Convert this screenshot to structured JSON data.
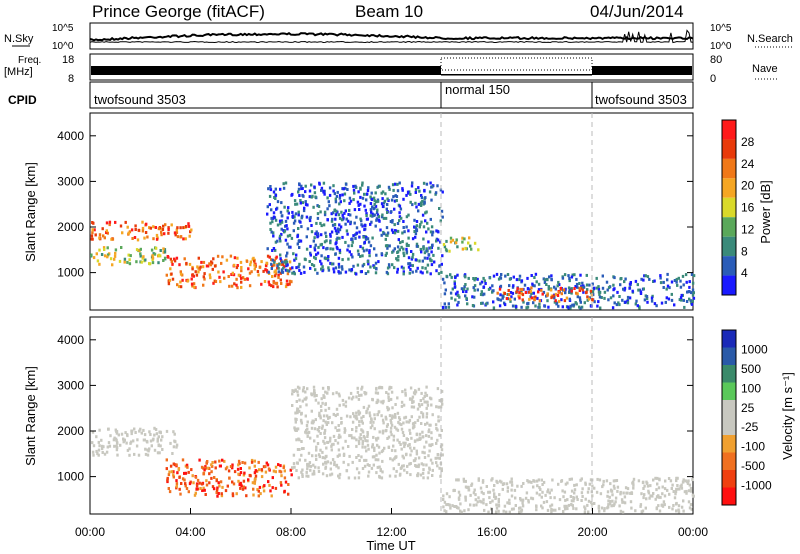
{
  "header": {
    "station": "Prince George (fitACF)",
    "beam": "Beam 10",
    "date": "04/Jun/2014"
  },
  "noise_panel": {
    "left_label": "N.Sky",
    "left_ticks": [
      "10^5",
      "10^0"
    ],
    "right_label": "N.Search",
    "right_ticks": [
      "10^5",
      "10^0"
    ]
  },
  "freq_panel": {
    "left_label_1": "Freq.",
    "left_label_2": "[MHz]",
    "left_ticks": [
      "18",
      "8"
    ],
    "right_label": "Nave",
    "right_ticks": [
      "80",
      "0"
    ]
  },
  "cpid_panel": {
    "label": "CPID",
    "segments": [
      {
        "name": "twofsound 3503",
        "start_h": 0,
        "end_h": 14
      },
      {
        "name": "normal 150",
        "start_h": 14,
        "end_h": 20
      },
      {
        "name": "twofsound 3503",
        "start_h": 20,
        "end_h": 24
      }
    ]
  },
  "colors": {
    "power_scale": [
      "#1a1aff",
      "#2a5cb8",
      "#3a8a7a",
      "#5aa85a",
      "#d9d92a",
      "#f5a623",
      "#f07818",
      "#e83a0a",
      "#ff1a1a"
    ],
    "velocity_scale": [
      "#ff1010",
      "#f04010",
      "#f07020",
      "#f0a030",
      "#c8c8c0",
      "#c8c8c0",
      "#5ac85a",
      "#3a8a6a",
      "#2a5aa8",
      "#1a2ab8"
    ]
  },
  "chart_data": [
    {
      "type": "heatmap",
      "name": "power",
      "xlabel": "",
      "ylabel": "Slant Range [km]",
      "xlim_hours": [
        0,
        24
      ],
      "ylim_km": [
        180,
        4500
      ],
      "yticks": [
        "1000",
        "2000",
        "3000",
        "4000"
      ],
      "colorbar_label": "Power [dB]",
      "colorbar_ticks": [
        "4",
        "8",
        "12",
        "16",
        "20",
        "24",
        "28"
      ],
      "scatter_regions": [
        {
          "t0": 0.0,
          "t1": 4.0,
          "r0": 1750,
          "r1": 2150,
          "level": "high"
        },
        {
          "t0": 3.0,
          "t1": 8.0,
          "r0": 700,
          "r1": 1400,
          "level": "high"
        },
        {
          "t0": 0.0,
          "t1": 3.0,
          "r0": 1200,
          "r1": 1600,
          "level": "mid"
        },
        {
          "t0": 7.0,
          "t1": 14.0,
          "r0": 1000,
          "r1": 3000,
          "level": "low"
        },
        {
          "t0": 14.0,
          "t1": 24.0,
          "r0": 250,
          "r1": 1000,
          "level": "low"
        },
        {
          "t0": 16.0,
          "t1": 20.0,
          "r0": 400,
          "r1": 700,
          "level": "high"
        },
        {
          "t0": 14.0,
          "t1": 15.5,
          "r0": 1500,
          "r1": 1800,
          "level": "mid"
        }
      ]
    },
    {
      "type": "heatmap",
      "name": "velocity",
      "xlabel": "Time UT",
      "ylabel": "Slant Range [km]",
      "xlim_hours": [
        0,
        24
      ],
      "ylim_km": [
        180,
        4500
      ],
      "xticks": [
        "00:00",
        "04:00",
        "08:00",
        "12:00",
        "16:00",
        "20:00",
        "00:00"
      ],
      "yticks": [
        "1000",
        "2000",
        "3000",
        "4000"
      ],
      "colorbar_label": "Velocity [m s⁻¹]",
      "colorbar_ticks": [
        "1000",
        "500",
        "100",
        "25",
        "-25",
        "-100",
        "-500",
        "-1000"
      ],
      "scatter_regions": [
        {
          "t0": 3.0,
          "t1": 8.0,
          "r0": 600,
          "r1": 1400,
          "level": "neg"
        },
        {
          "t0": 0.0,
          "t1": 3.5,
          "r0": 1500,
          "r1": 2100,
          "level": "zero"
        },
        {
          "t0": 8.0,
          "t1": 14.0,
          "r0": 1000,
          "r1": 3000,
          "level": "zero"
        },
        {
          "t0": 14.0,
          "t1": 24.0,
          "r0": 250,
          "r1": 1000,
          "level": "zero"
        }
      ]
    }
  ]
}
